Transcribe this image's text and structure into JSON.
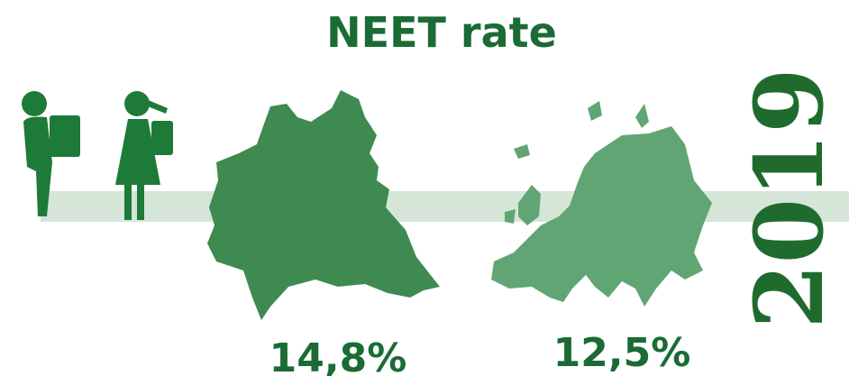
{
  "title": "NEET rate",
  "regions": [
    {
      "value": "14,8%"
    },
    {
      "value": "12,5%"
    }
  ],
  "year": "2019"
}
